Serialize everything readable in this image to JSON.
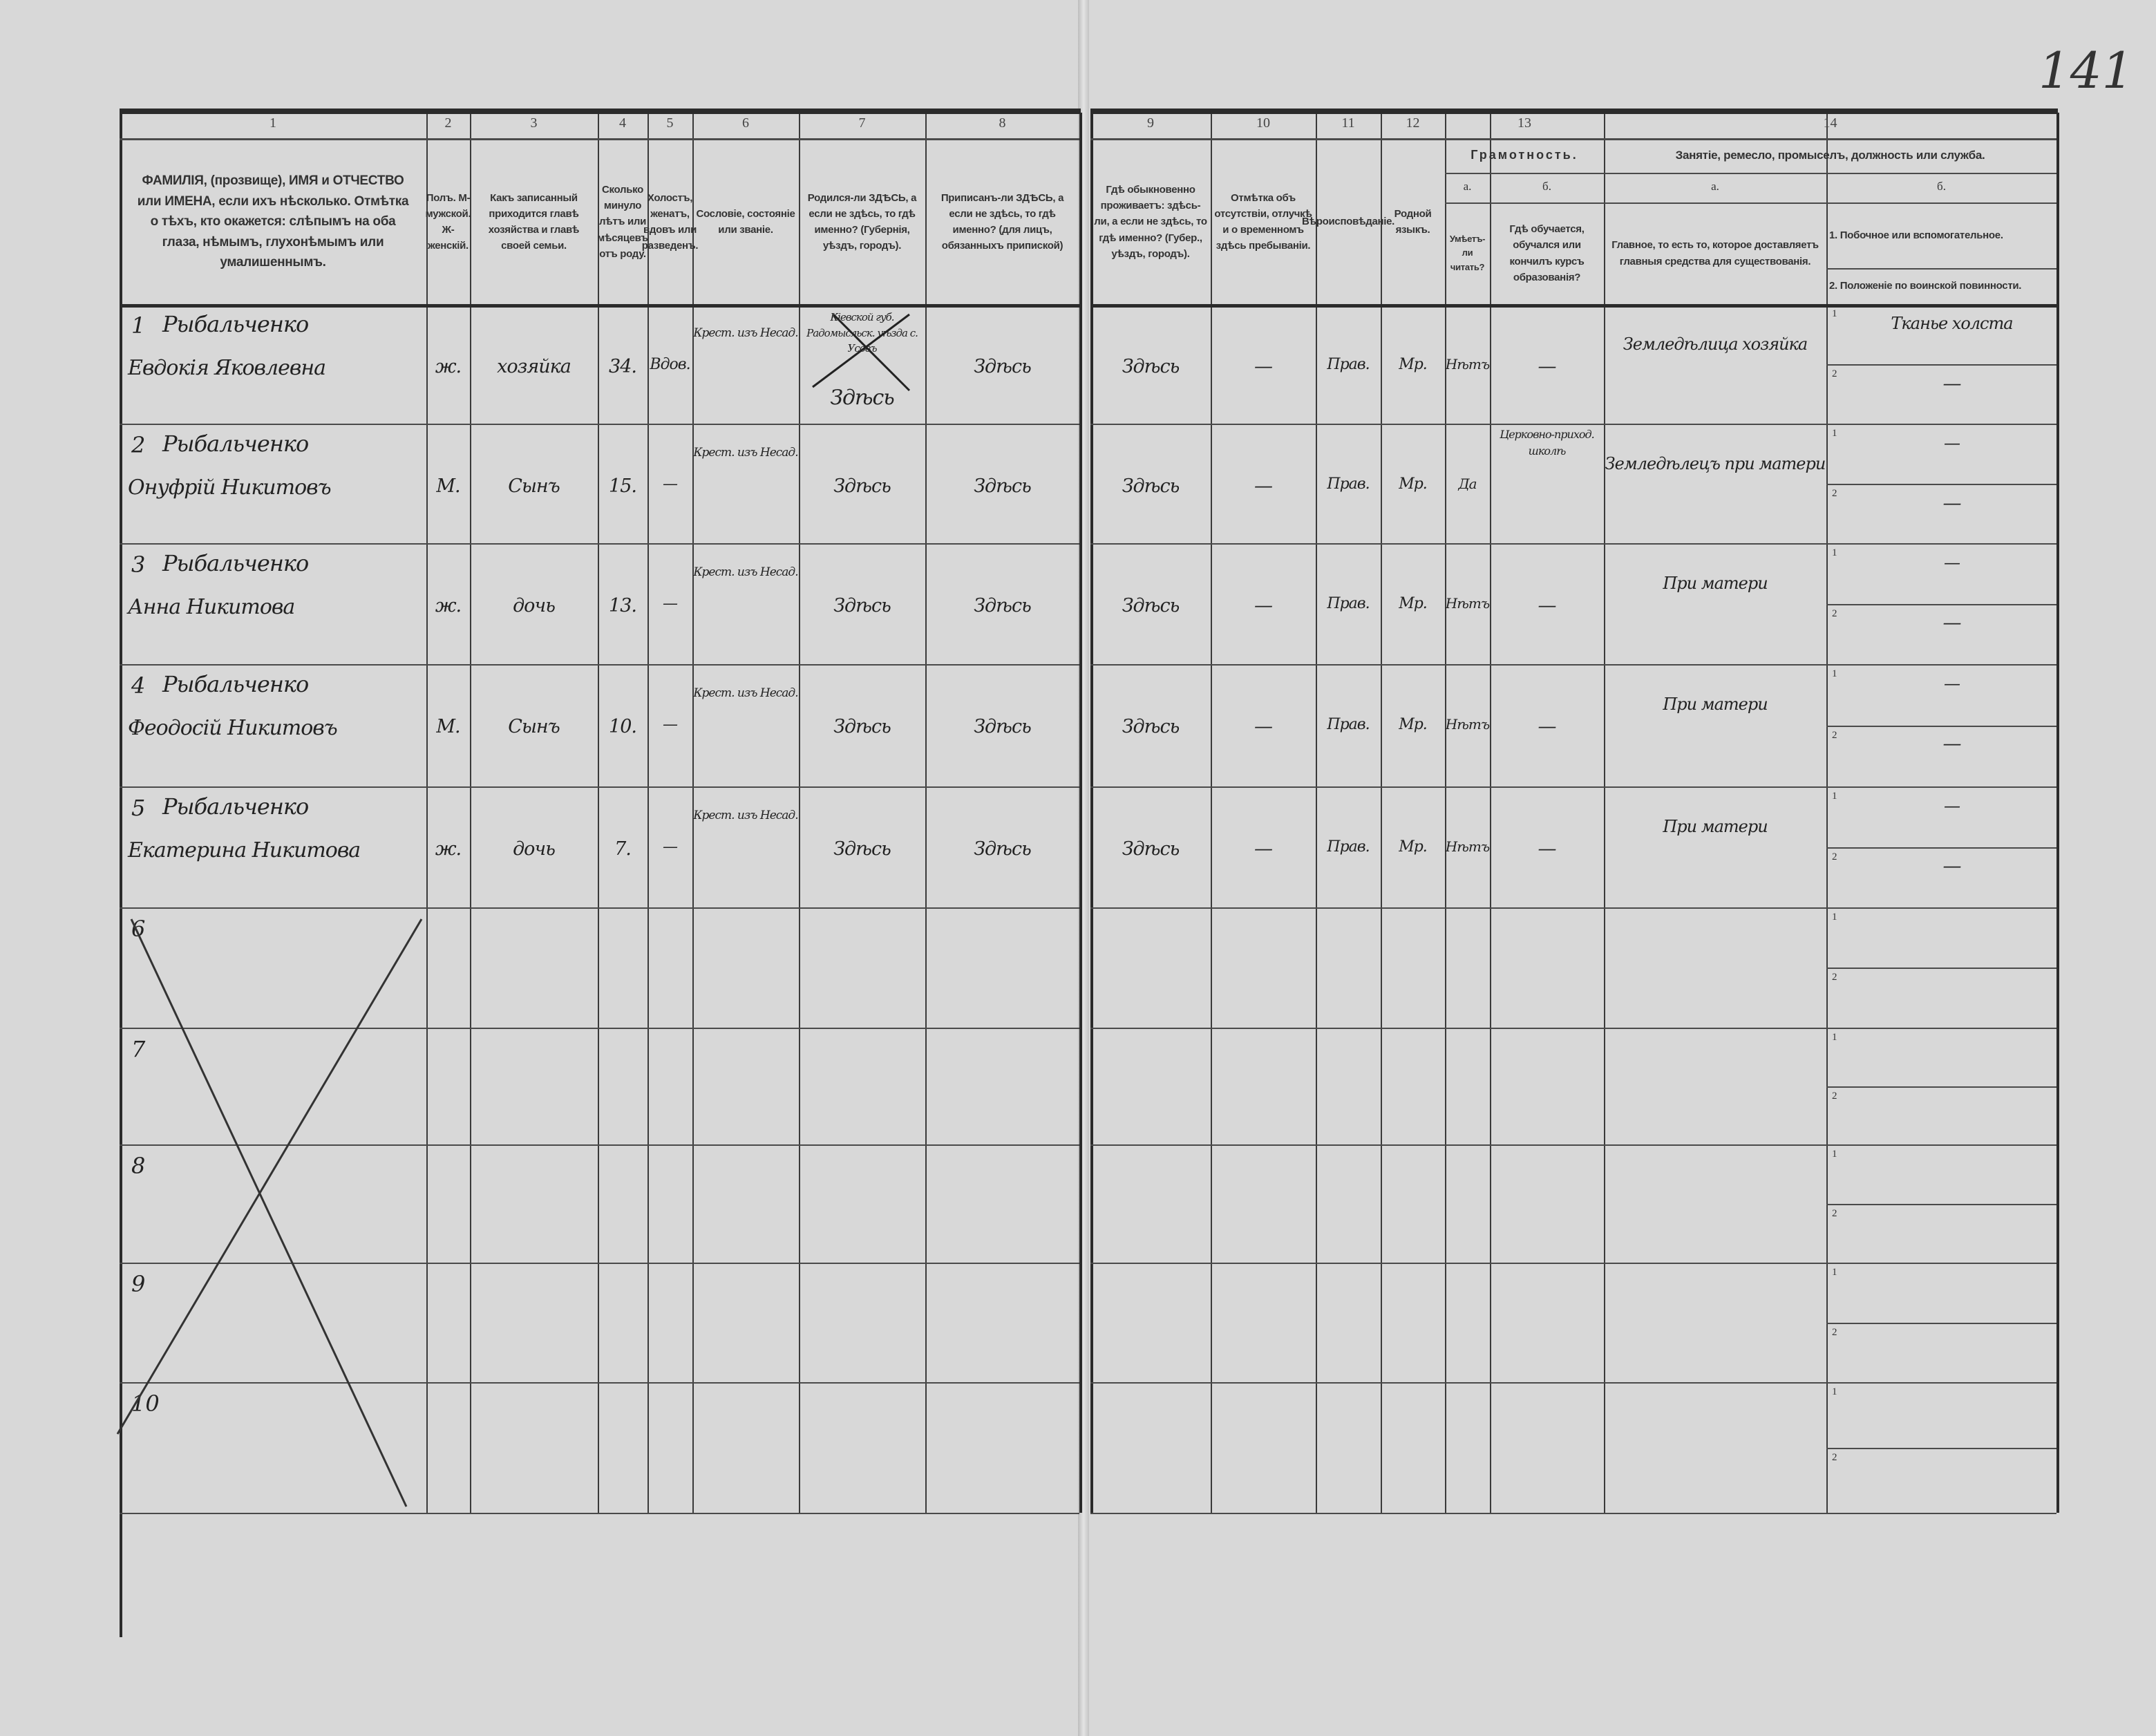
{
  "page_number": "141",
  "header": {
    "column_numbers": [
      "1",
      "2",
      "3",
      "4",
      "5",
      "6",
      "7",
      "8",
      "9",
      "10",
      "11",
      "12",
      "13",
      "14"
    ],
    "c1": "ФАМИЛІЯ, (прозвище), ИМЯ и ОТЧЕСТВО или ИМЕНА, если ихъ нѣсколько. Отмѣтка о тѣхъ, кто окажется: слѣпымъ на оба глаза, нѣмымъ, глухонѣмымъ или умалишеннымъ.",
    "c2": "Полъ. М-мужской. Ж-женскій.",
    "c3": "Какъ записанный приходится главѣ хозяйства и главѣ своей семьи.",
    "c4": "Сколько минуло лѣтъ или мѣсяцевъ отъ роду.",
    "c5": "Холостъ, женатъ, вдовъ или разведенъ.",
    "c6": "Сословіе, состояніе или званіе.",
    "c7": "Родился-ли ЗДѢСЬ, а если не здѣсь, то гдѣ именно? (Губернія, уѣздъ, городъ).",
    "c8": "Приписанъ-ли ЗДѢСЬ, а если не здѣсь, то гдѣ именно? (для лицъ, обязанныхъ припиской)",
    "c9": "Гдѣ обыкновенно проживаетъ: здѣсь-ли, а если не здѣсь, то гдѣ именно? (Губер., уѣздъ, городъ).",
    "c10": "Отмѣтка объ отсутствіи, отлучкѣ и о временномъ здѣсь пребываніи.",
    "c11": "Вѣроисповѣданіе.",
    "c12": "Родной языкъ.",
    "c13": "Грамотность.",
    "c13a_letter": "а.",
    "c13b_letter": "б.",
    "c13a": "Умѣетъ-ли читать?",
    "c13b": "Гдѣ обучается, обучался или кончилъ курсъ образованія?",
    "c14": "Занятіе, ремесло, промыселъ, должность или служба.",
    "c14a_letter": "а.",
    "c14b_letter": "б.",
    "c14a": "Главное, то есть то, которое доставляетъ главныя средства для существованія.",
    "c14b1": "1. Побочное или вспомогательное.",
    "c14b2": "2. Положеніе по воинской повинности."
  },
  "rows": [
    {
      "no": "1",
      "surname": "Рыбальченко",
      "name": "Евдокія Яковлевна",
      "sex": "ж.",
      "relation": "хозяйка",
      "age": "34.",
      "marital": "Вдов.",
      "estate": "Крест. изъ Несад.",
      "born_crossed": "Кіевской губ. Радомысльск. уѣзда с. Усовъ",
      "born": "Здѣсь",
      "registered": "Здѣсь",
      "resides": "Здѣсь",
      "absence": "—",
      "religion": "Прав.",
      "language": "Мр.",
      "literate": "Нѣтъ",
      "schooling": "—",
      "occupation": "Земледѣлица хозяйка",
      "side_occupation": "Тканье холста",
      "military": "—"
    },
    {
      "no": "2",
      "surname": "Рыбальченко",
      "name": "Онуфрій Никитовъ",
      "sex": "М.",
      "relation": "Сынъ",
      "age": "15.",
      "marital": "—",
      "estate": "Крест. изъ Несад.",
      "born_crossed": "",
      "born": "Здѣсь",
      "registered": "Здѣсь",
      "resides": "Здѣсь",
      "absence": "—",
      "religion": "Прав.",
      "language": "Мр.",
      "literate": "Да",
      "schooling": "Церковно-приход. школѣ",
      "occupation": "Земледѣлецъ при матери",
      "side_occupation": "—",
      "military": "—"
    },
    {
      "no": "3",
      "surname": "Рыбальченко",
      "name": "Анна Никитова",
      "sex": "ж.",
      "relation": "дочь",
      "age": "13.",
      "marital": "—",
      "estate": "Крест. изъ Несад.",
      "born_crossed": "",
      "born": "Здѣсь",
      "registered": "Здѣсь",
      "resides": "Здѣсь",
      "absence": "—",
      "religion": "Прав.",
      "language": "Мр.",
      "literate": "Нѣтъ",
      "schooling": "—",
      "occupation": "При матери",
      "side_occupation": "—",
      "military": "—"
    },
    {
      "no": "4",
      "surname": "Рыбальченко",
      "name": "Феодосій Никитовъ",
      "sex": "М.",
      "relation": "Сынъ",
      "age": "10.",
      "marital": "—",
      "estate": "Крест. изъ Несад.",
      "born_crossed": "",
      "born": "Здѣсь",
      "registered": "Здѣсь",
      "resides": "Здѣсь",
      "absence": "—",
      "religion": "Прав.",
      "language": "Мр.",
      "literate": "Нѣтъ",
      "schooling": "—",
      "occupation": "При матери",
      "side_occupation": "—",
      "military": "—"
    },
    {
      "no": "5",
      "surname": "Рыбальченко",
      "name": "Екатерина Никитова",
      "sex": "ж.",
      "relation": "дочь",
      "age": "7.",
      "marital": "—",
      "estate": "Крест. изъ Несад.",
      "born_crossed": "",
      "born": "Здѣсь",
      "registered": "Здѣсь",
      "resides": "Здѣсь",
      "absence": "—",
      "religion": "Прав.",
      "language": "Мр.",
      "literate": "Нѣтъ",
      "schooling": "—",
      "occupation": "При матери",
      "side_occupation": "—",
      "military": "—"
    }
  ],
  "empty_rows": [
    "6",
    "7",
    "8",
    "9",
    "10"
  ],
  "sub_labels": [
    "1",
    "2"
  ],
  "colors": {
    "paper": "#d8d8d8",
    "ink": "#222222",
    "rule": "#3a3a3a"
  }
}
